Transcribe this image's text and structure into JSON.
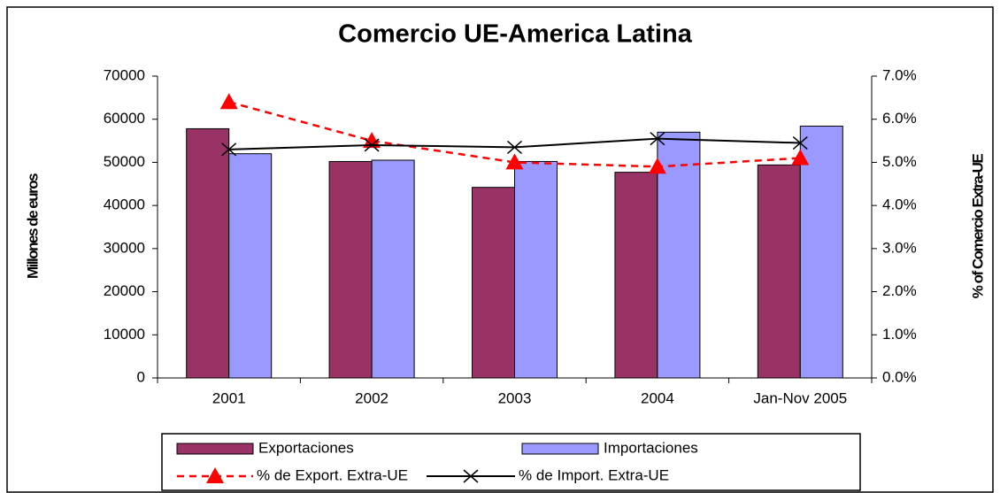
{
  "chart_data": {
    "type": "bar",
    "title": "Comercio UE-America Latina",
    "y_label": "Millones de euros",
    "y2_label": "% of Comercio Extra-UE",
    "categories": [
      "2001",
      "2002",
      "2003",
      "2004",
      "Jan-Nov 2005"
    ],
    "series": [
      {
        "name": "Exportaciones",
        "type": "bar",
        "color": "#993366",
        "values": [
          57800,
          50200,
          44200,
          47700,
          49400
        ]
      },
      {
        "name": "Importaciones",
        "type": "bar",
        "color": "#9999ff",
        "values": [
          52000,
          50500,
          50200,
          57000,
          58400
        ]
      },
      {
        "name": "% de Export. Extra-UE",
        "type": "line",
        "axis": "y2",
        "color": "#ff0000",
        "dashed": true,
        "marker": "triangle",
        "values": [
          6.4,
          5.5,
          5.0,
          4.9,
          5.1
        ]
      },
      {
        "name": "% de Import. Extra-UE",
        "type": "line",
        "axis": "y2",
        "color": "#000000",
        "marker": "x",
        "values": [
          5.3,
          5.4,
          5.35,
          5.55,
          5.45
        ]
      }
    ],
    "ylim": [
      0,
      70000
    ],
    "yticks": [
      0,
      10000,
      20000,
      30000,
      40000,
      50000,
      60000,
      70000
    ],
    "y2lim": [
      0,
      7
    ],
    "y2ticks": [
      {
        "value": 0,
        "label": "0.0%"
      },
      {
        "value": 1,
        "label": "1.0%"
      },
      {
        "value": 2,
        "label": "2.0%"
      },
      {
        "value": 3,
        "label": "3.0%"
      },
      {
        "value": 4,
        "label": "4.0%"
      },
      {
        "value": 5,
        "label": "5.0%"
      },
      {
        "value": 6,
        "label": "6.0%"
      },
      {
        "value": 7,
        "label": "7.0%"
      }
    ],
    "legend": "bottom"
  }
}
